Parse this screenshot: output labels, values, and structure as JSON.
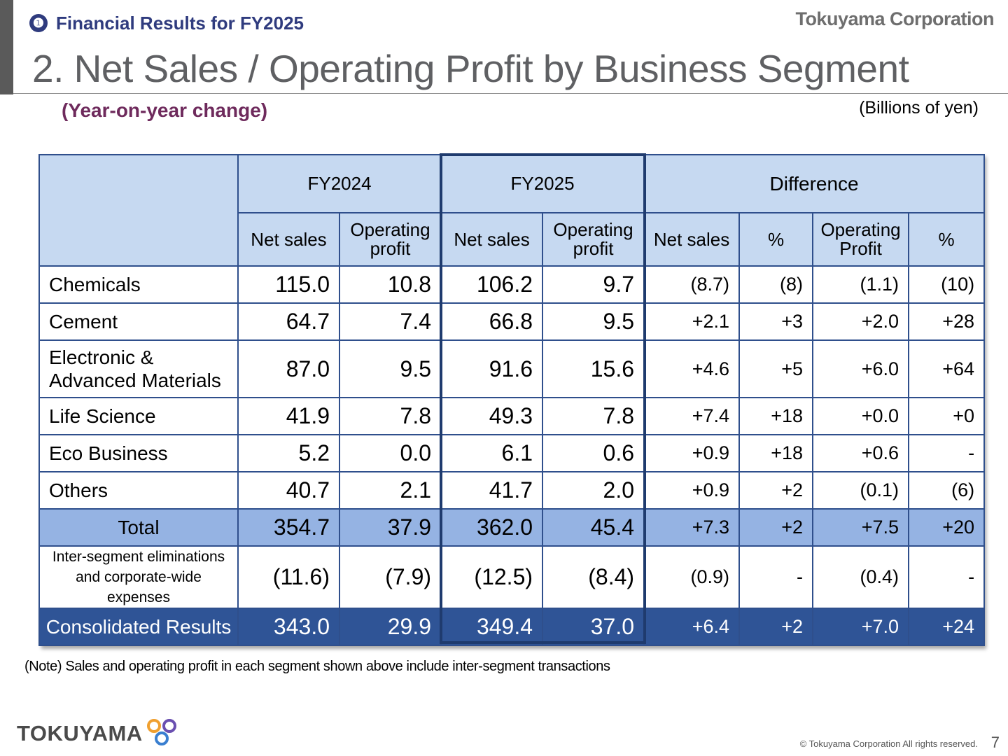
{
  "header": {
    "section_number": "❶",
    "section_title": "Financial Results for FY2025",
    "company": "Tokuyama Corporation",
    "title": "2. Net Sales / Operating Profit by Business Segment",
    "subtitle": "(Year-on-year change)",
    "units": "(Billions of yen)"
  },
  "table": {
    "group_headers": [
      "FY2024",
      "FY2025",
      "Difference"
    ],
    "sub_headers": [
      "Net sales",
      "Operating profit",
      "Net sales",
      "Operating profit",
      "Net sales",
      "%",
      "Operating Profit",
      "%"
    ],
    "rows": [
      {
        "label": "Chemicals",
        "cells": [
          "115.0",
          "10.8",
          "106.2",
          "9.7",
          "(8.7)",
          "(8)",
          "(1.1)",
          "(10)"
        ]
      },
      {
        "label": "Cement",
        "cells": [
          "64.7",
          "7.4",
          "66.8",
          "9.5",
          "+2.1",
          "+3",
          "+2.0",
          "+28"
        ]
      },
      {
        "label": "Electronic & Advanced Materials",
        "label_line1": "Electronic &",
        "label_line2": "Advanced Materials",
        "cells": [
          "87.0",
          "9.5",
          "91.6",
          "15.6",
          "+4.6",
          "+5",
          "+6.0",
          "+64"
        ]
      },
      {
        "label": "Life Science",
        "cells": [
          "41.9",
          "7.8",
          "49.3",
          "7.8",
          "+7.4",
          "+18",
          "+0.0",
          "+0"
        ]
      },
      {
        "label": "Eco Business",
        "cells": [
          "5.2",
          "0.0",
          "6.1",
          "0.6",
          "+0.9",
          "+18",
          "+0.6",
          "-"
        ]
      },
      {
        "label": "Others",
        "cells": [
          "40.7",
          "2.1",
          "41.7",
          "2.0",
          "+0.9",
          "+2",
          "(0.1)",
          "(6)"
        ]
      },
      {
        "label": "Total",
        "cells": [
          "354.7",
          "37.9",
          "362.0",
          "45.4",
          "+7.3",
          "+2",
          "+7.5",
          "+20"
        ]
      },
      {
        "label": "Inter-segment eliminations and corporate-wide expenses",
        "label_line1": "Inter-segment eliminations",
        "label_line2": "and corporate-wide",
        "label_line3": "expenses",
        "cells": [
          "(11.6)",
          "(7.9)",
          "(12.5)",
          "(8.4)",
          "(0.9)",
          "-",
          "(0.4)",
          "-"
        ]
      },
      {
        "label": "Consolidated Results",
        "cells": [
          "343.0",
          "29.9",
          "349.4",
          "37.0",
          "+6.4",
          "+2",
          "+7.0",
          "+24"
        ]
      }
    ]
  },
  "note": "(Note) Sales and operating profit in each segment shown above include inter-segment transactions",
  "footer": {
    "logo_text": "TOKUYAMA",
    "copyright": "© Tokuyama Corporation All rights reserved.",
    "page_number": "7"
  },
  "colors": {
    "header_fill": "#c6d9f1",
    "total_fill": "#95b3e3",
    "consolidated_fill": "#2f5496",
    "border": "#2f4f8c",
    "subtitle": "#6e2a5c",
    "section_title": "#2f3b7e"
  }
}
